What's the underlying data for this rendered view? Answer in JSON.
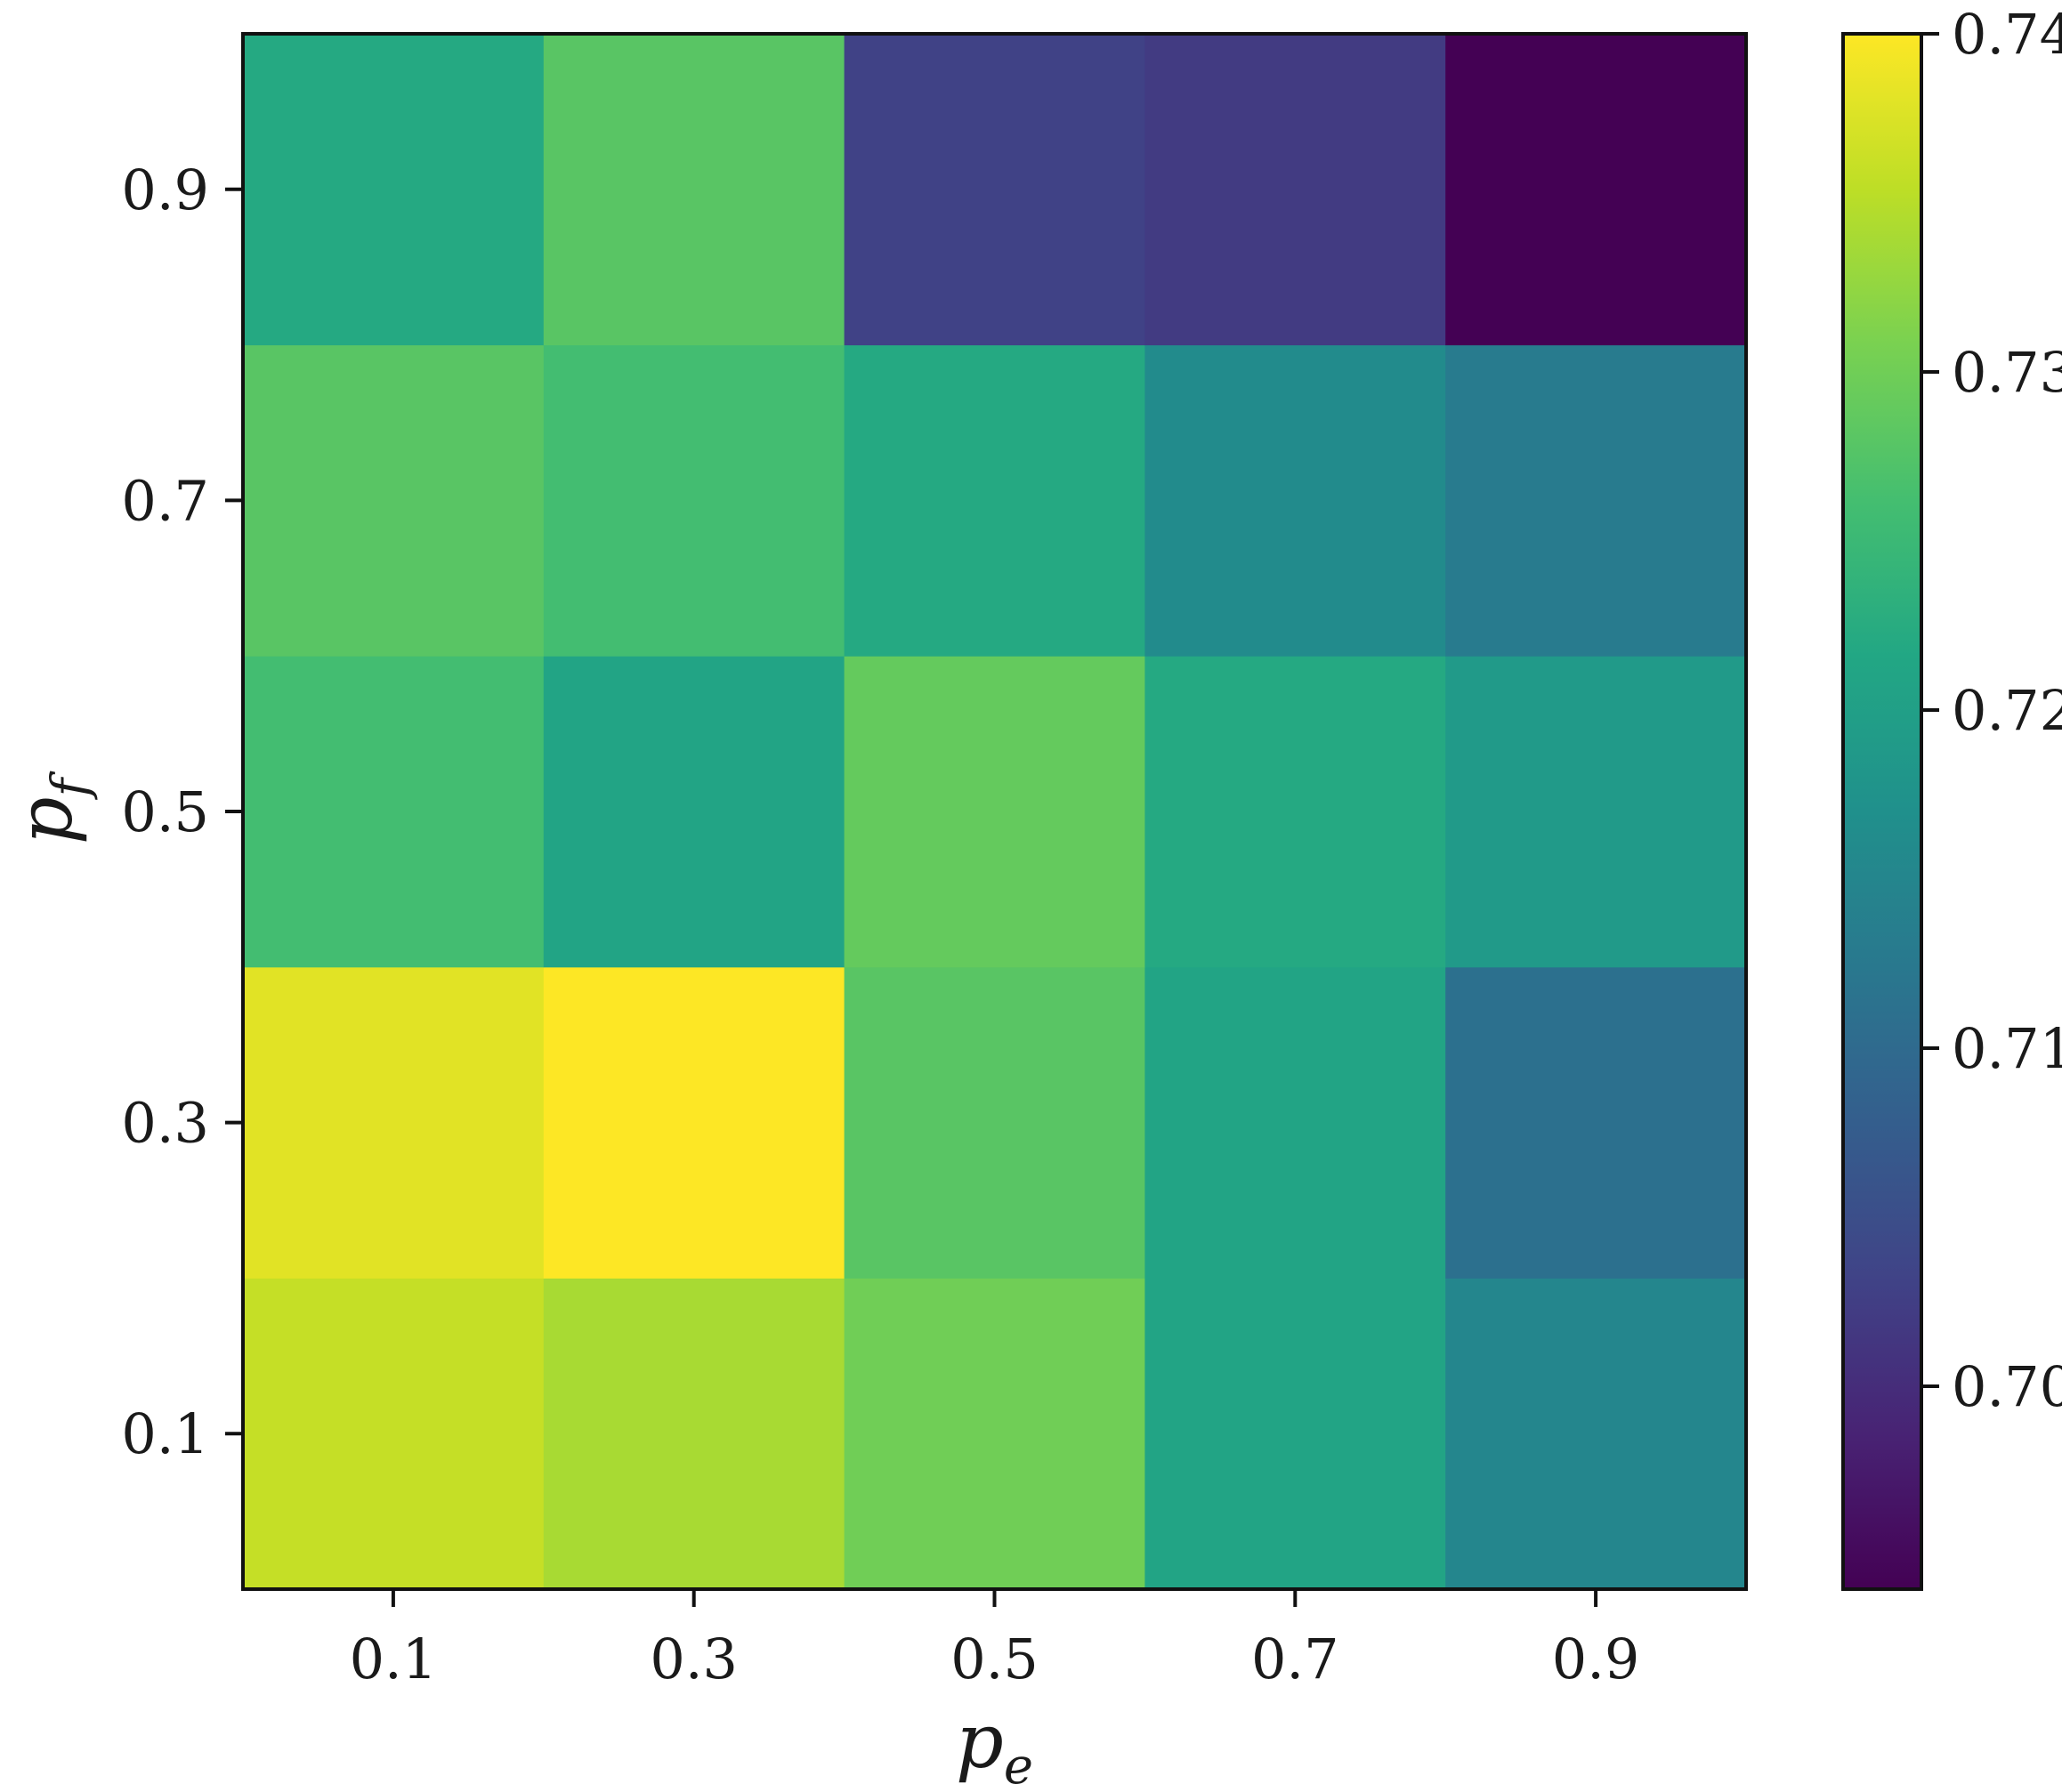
{
  "chart_data": {
    "type": "heatmap",
    "xlabel": {
      "base": "p",
      "sub": "e"
    },
    "ylabel": {
      "base": "p",
      "sub": "f"
    },
    "x": [
      "0.1",
      "0.3",
      "0.5",
      "0.7",
      "0.9"
    ],
    "y": [
      "0.1",
      "0.3",
      "0.5",
      "0.7",
      "0.9"
    ],
    "values": [
      [
        0.736,
        0.734,
        0.73,
        0.721,
        0.715
      ],
      [
        0.738,
        0.74,
        0.728,
        0.721,
        0.711
      ],
      [
        0.726,
        0.721,
        0.729,
        0.722,
        0.719
      ],
      [
        0.728,
        0.726,
        0.722,
        0.716,
        0.713
      ],
      [
        0.722,
        0.728,
        0.703,
        0.702,
        0.694
      ]
    ],
    "colormap": "viridis",
    "colorbar": {
      "min": 0.694,
      "max": 0.74,
      "ticks": [
        "0.70",
        "0.71",
        "0.72",
        "0.73",
        "0.74"
      ]
    },
    "grid": false
  }
}
